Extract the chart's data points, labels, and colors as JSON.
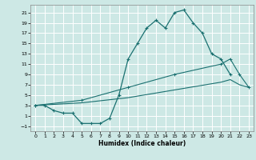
{
  "xlabel": "Humidex (Indice chaleur)",
  "bg_color": "#cde8e5",
  "grid_color": "#ffffff",
  "line_color": "#1a7070",
  "xlim": [
    -0.5,
    23.5
  ],
  "ylim": [
    -2,
    22.5
  ],
  "xticks": [
    0,
    1,
    2,
    3,
    4,
    5,
    6,
    7,
    8,
    9,
    10,
    11,
    12,
    13,
    14,
    15,
    16,
    17,
    18,
    19,
    20,
    21,
    22,
    23
  ],
  "yticks": [
    -1,
    1,
    3,
    5,
    7,
    9,
    11,
    13,
    15,
    17,
    19,
    21
  ],
  "line1_x": [
    0,
    1,
    2,
    3,
    4,
    5,
    6,
    7,
    8,
    9,
    10,
    11,
    12,
    13,
    14,
    15,
    16,
    17,
    18,
    19,
    20,
    21
  ],
  "line1_y": [
    3,
    3,
    2,
    1.5,
    1.5,
    -0.5,
    -0.5,
    -0.5,
    0.5,
    5,
    12,
    15,
    18,
    19.5,
    18,
    21,
    21.5,
    19,
    17,
    13,
    12,
    9
  ],
  "line2_x": [
    0,
    5,
    10,
    15,
    20,
    21,
    22,
    23
  ],
  "line2_y": [
    3,
    4,
    6.5,
    9,
    11,
    12,
    9,
    6.5
  ],
  "line3_x": [
    0,
    5,
    10,
    15,
    20,
    21,
    22,
    23
  ],
  "line3_y": [
    3,
    3.5,
    4.5,
    6,
    7.5,
    8,
    7,
    6.5
  ]
}
